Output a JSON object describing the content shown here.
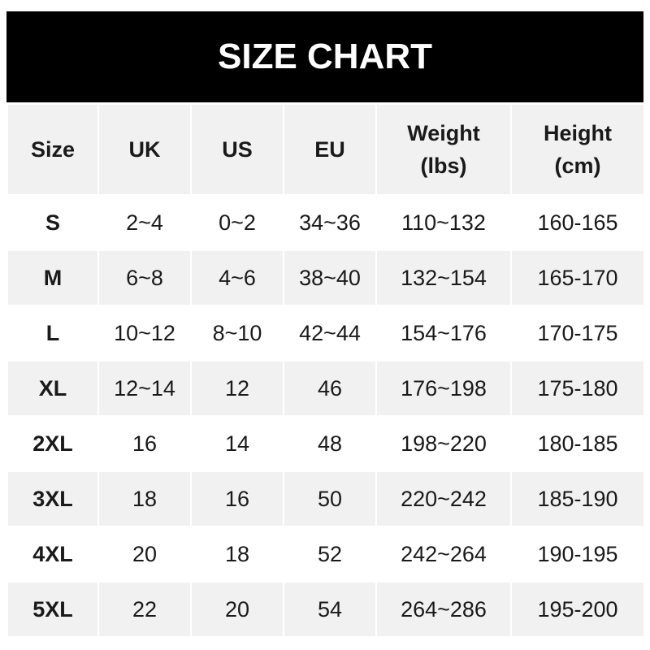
{
  "title": "SIZE CHART",
  "headers": [
    "Size",
    "UK",
    "US",
    "EU",
    "Weight\n(lbs)",
    "Height\n(cm)"
  ],
  "rows": [
    [
      "S",
      "2~4",
      "0~2",
      "34~36",
      "110~132",
      "160-165"
    ],
    [
      "M",
      "6~8",
      "4~6",
      "38~40",
      "132~154",
      "165-170"
    ],
    [
      "L",
      "10~12",
      "8~10",
      "42~44",
      "154~176",
      "170-175"
    ],
    [
      "XL",
      "12~14",
      "12",
      "46",
      "176~198",
      "175-180"
    ],
    [
      "2XL",
      "16",
      "14",
      "48",
      "198~220",
      "180-185"
    ],
    [
      "3XL",
      "18",
      "16",
      "50",
      "220~242",
      "185-190"
    ],
    [
      "4XL",
      "20",
      "18",
      "52",
      "242~264",
      "190-195"
    ],
    [
      "5XL",
      "22",
      "20",
      "54",
      "264~286",
      "195-200"
    ]
  ]
}
